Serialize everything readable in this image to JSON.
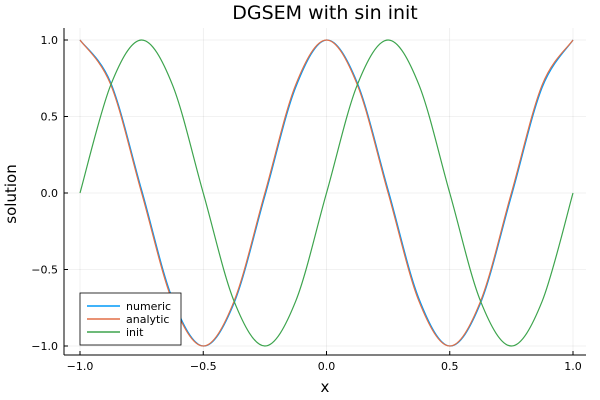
{
  "chart_data": {
    "type": "line",
    "title": "DGSEM with sin init",
    "xlabel": "x",
    "ylabel": "solution",
    "xlim": [
      -1.0,
      1.0
    ],
    "ylim": [
      -1.0,
      1.0
    ],
    "x_ticks": [
      -1.0,
      -0.5,
      0.0,
      0.5,
      1.0
    ],
    "x_tick_labels": [
      "−1.0",
      "−0.5",
      "0.0",
      "0.5",
      "1.0"
    ],
    "y_ticks": [
      -1.0,
      -0.5,
      0.0,
      0.5,
      1.0
    ],
    "y_tick_labels": [
      "−1.0",
      "−0.5",
      "0.0",
      "0.5",
      "1.0"
    ],
    "grid": true,
    "legend_position": "bottom-left",
    "series": [
      {
        "name": "numeric",
        "color": "#009af9",
        "x": [
          -1.0,
          -0.875,
          -0.75,
          -0.625,
          -0.5,
          -0.375,
          -0.25,
          -0.125,
          0.0,
          0.125,
          0.25,
          0.375,
          0.5,
          0.625,
          0.75,
          0.875,
          1.0
        ],
        "y": [
          1.0,
          0.72,
          0.02,
          -0.69,
          -1.0,
          -0.72,
          -0.02,
          0.69,
          1.0,
          0.72,
          0.02,
          -0.69,
          -1.0,
          -0.72,
          -0.02,
          0.69,
          1.0
        ]
      },
      {
        "name": "analytic",
        "color": "#e26f46",
        "x": [
          -1.0,
          -0.875,
          -0.75,
          -0.625,
          -0.5,
          -0.375,
          -0.25,
          -0.125,
          0.0,
          0.125,
          0.25,
          0.375,
          0.5,
          0.625,
          0.75,
          0.875,
          1.0
        ],
        "y": [
          1.0,
          0.707,
          0.0,
          -0.707,
          -1.0,
          -0.707,
          0.0,
          0.707,
          1.0,
          0.707,
          0.0,
          -0.707,
          -1.0,
          -0.707,
          0.0,
          0.707,
          1.0
        ]
      },
      {
        "name": "init",
        "color": "#3da44d",
        "x": [
          -1.0,
          -0.875,
          -0.75,
          -0.625,
          -0.5,
          -0.375,
          -0.25,
          -0.125,
          0.0,
          0.125,
          0.25,
          0.375,
          0.5,
          0.625,
          0.75,
          0.875,
          1.0
        ],
        "y": [
          0.0,
          0.707,
          1.0,
          0.707,
          0.0,
          -0.707,
          -1.0,
          -0.707,
          0.0,
          0.707,
          1.0,
          0.707,
          0.0,
          -0.707,
          -1.0,
          -0.707,
          0.0
        ]
      }
    ]
  }
}
